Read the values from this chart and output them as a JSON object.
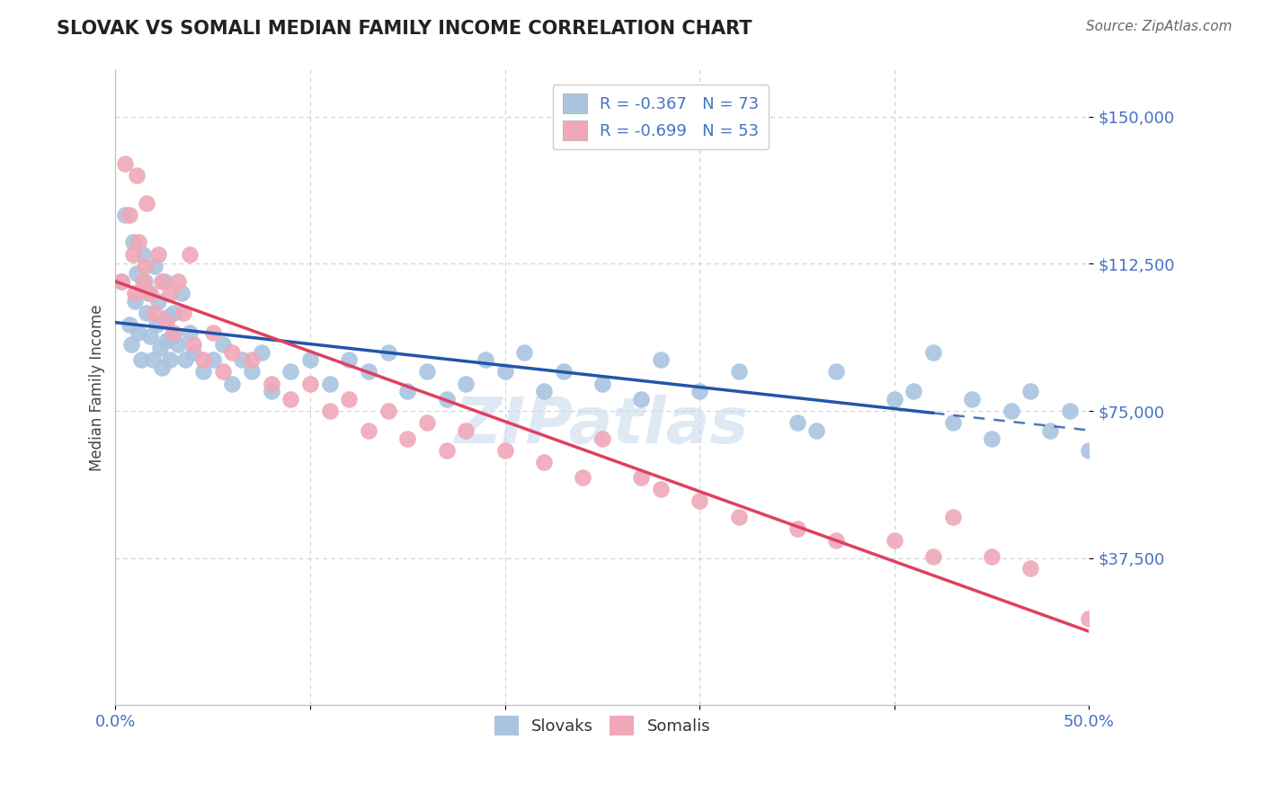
{
  "title": "SLOVAK VS SOMALI MEDIAN FAMILY INCOME CORRELATION CHART",
  "source_text": "Source: ZipAtlas.com",
  "ylabel": "Median Family Income",
  "x_min": 0.0,
  "x_max": 50.0,
  "y_min": 0,
  "y_max": 162000,
  "yticks": [
    37500,
    75000,
    112500,
    150000
  ],
  "ytick_labels": [
    "$37,500",
    "$75,000",
    "$112,500",
    "$150,000"
  ],
  "xticks": [
    0.0,
    10.0,
    20.0,
    30.0,
    40.0,
    50.0
  ],
  "xtick_labels": [
    "0.0%",
    "",
    "",
    "",
    "",
    "50.0%"
  ],
  "background_color": "#ffffff",
  "grid_color": "#c8c8c8",
  "slovak_color": "#aac4e0",
  "somali_color": "#f0a8b8",
  "slovak_line_color": "#2255aa",
  "somali_line_color": "#e0406080",
  "title_color": "#222222",
  "legend_slovak_label": "R = -0.367   N = 73",
  "legend_somali_label": "R = -0.699   N = 53",
  "watermark": "ZIPatlas",
  "Slovak_x": [
    0.3,
    0.5,
    0.7,
    0.8,
    0.9,
    1.0,
    1.1,
    1.2,
    1.3,
    1.4,
    1.5,
    1.6,
    1.7,
    1.8,
    1.9,
    2.0,
    2.1,
    2.2,
    2.3,
    2.4,
    2.5,
    2.6,
    2.7,
    2.8,
    2.9,
    3.0,
    3.2,
    3.4,
    3.6,
    3.8,
    4.0,
    4.5,
    5.0,
    5.5,
    6.0,
    6.5,
    7.0,
    7.5,
    8.0,
    9.0,
    10.0,
    11.0,
    12.0,
    13.0,
    14.0,
    15.0,
    16.0,
    17.0,
    18.0,
    19.0,
    20.0,
    21.0,
    22.0,
    23.0,
    25.0,
    27.0,
    28.0,
    30.0,
    32.0,
    35.0,
    36.0,
    37.0,
    40.0,
    41.0,
    42.0,
    43.0,
    44.0,
    45.0,
    46.0,
    47.0,
    48.0,
    49.0,
    50.0
  ],
  "Slovak_y": [
    108000,
    125000,
    97000,
    92000,
    118000,
    103000,
    110000,
    95000,
    88000,
    115000,
    108000,
    100000,
    105000,
    94000,
    88000,
    112000,
    97000,
    103000,
    91000,
    86000,
    108000,
    93000,
    99000,
    88000,
    94000,
    100000,
    92000,
    105000,
    88000,
    95000,
    90000,
    85000,
    88000,
    92000,
    82000,
    88000,
    85000,
    90000,
    80000,
    85000,
    88000,
    82000,
    88000,
    85000,
    90000,
    80000,
    85000,
    78000,
    82000,
    88000,
    85000,
    90000,
    80000,
    85000,
    82000,
    78000,
    88000,
    80000,
    85000,
    72000,
    70000,
    85000,
    78000,
    80000,
    90000,
    72000,
    78000,
    68000,
    75000,
    80000,
    70000,
    75000,
    65000
  ],
  "Somali_x": [
    0.3,
    0.5,
    0.7,
    0.9,
    1.0,
    1.1,
    1.2,
    1.4,
    1.5,
    1.6,
    1.8,
    2.0,
    2.2,
    2.4,
    2.6,
    2.8,
    3.0,
    3.2,
    3.5,
    3.8,
    4.0,
    4.5,
    5.0,
    5.5,
    6.0,
    7.0,
    8.0,
    9.0,
    10.0,
    11.0,
    12.0,
    13.0,
    14.0,
    15.0,
    16.0,
    17.0,
    18.0,
    20.0,
    22.0,
    24.0,
    25.0,
    27.0,
    28.0,
    30.0,
    32.0,
    35.0,
    37.0,
    40.0,
    42.0,
    43.0,
    45.0,
    47.0,
    50.0
  ],
  "Somali_y": [
    108000,
    138000,
    125000,
    115000,
    105000,
    135000,
    118000,
    108000,
    112000,
    128000,
    105000,
    100000,
    115000,
    108000,
    98000,
    105000,
    95000,
    108000,
    100000,
    115000,
    92000,
    88000,
    95000,
    85000,
    90000,
    88000,
    82000,
    78000,
    82000,
    75000,
    78000,
    70000,
    75000,
    68000,
    72000,
    65000,
    70000,
    65000,
    62000,
    58000,
    68000,
    58000,
    55000,
    52000,
    48000,
    45000,
    42000,
    42000,
    38000,
    48000,
    38000,
    35000,
    22000
  ]
}
